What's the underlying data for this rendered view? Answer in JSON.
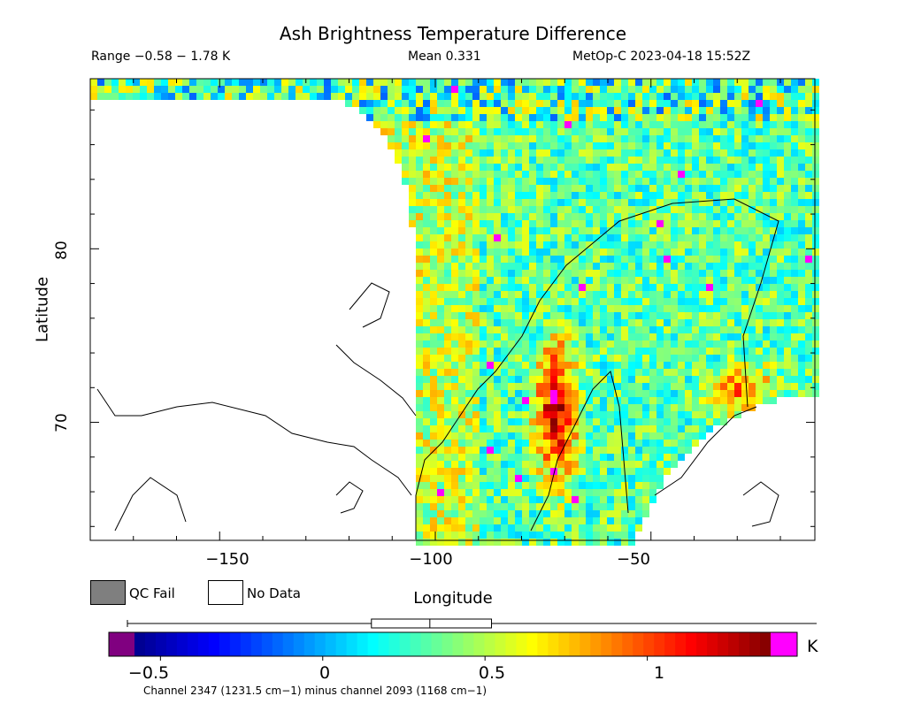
{
  "chart_data": {
    "type": "heatmap",
    "title": "Ash Brightness Temperature Difference",
    "stats": {
      "range_text": "Range −0.58 − 1.78 K",
      "mean_text": "Mean 0.331",
      "satellite_time": "MetOp-C 2023-04-18 15:52Z"
    },
    "xlabel": "Longitude",
    "ylabel": "Latitude",
    "xlim": [
      -180,
      -12
    ],
    "ylim": [
      63.2,
      89.8
    ],
    "x_ticks": [
      -150,
      -100,
      -50
    ],
    "x_tick_labels": [
      "−150",
      "−100",
      "−50"
    ],
    "y_ticks": [
      70,
      80
    ],
    "y_tick_labels": [
      "70",
      "80"
    ],
    "colorbar": {
      "vmin": -0.58,
      "vmax": 1.38,
      "unit": "K",
      "ticks": [
        -0.5,
        0,
        0.5,
        1
      ],
      "tick_labels": [
        "−0.5",
        "0",
        "0.5",
        "1"
      ],
      "stops": [
        "#00008b",
        "#0000ff",
        "#0080ff",
        "#00ffff",
        "#80ff80",
        "#ffff00",
        "#ff8000",
        "#ff0000",
        "#800000"
      ],
      "under_color": "#800080",
      "over_color": "#ff00ff",
      "box_stats": {
        "min": -0.58,
        "q1": 0.15,
        "median": 0.33,
        "q3": 0.52,
        "max": 1.78
      },
      "caption": "Channel 2347 (1231.5 cm−1) minus channel 2093 (1168 cm−1)"
    },
    "legend": [
      {
        "label": "QC Fail",
        "color": "#7f7f7f"
      },
      {
        "label": "No Data",
        "color": "#ffffff"
      }
    ],
    "hotspot": {
      "lon": -72,
      "lat": 70.5,
      "peak_value": 1.25
    }
  }
}
